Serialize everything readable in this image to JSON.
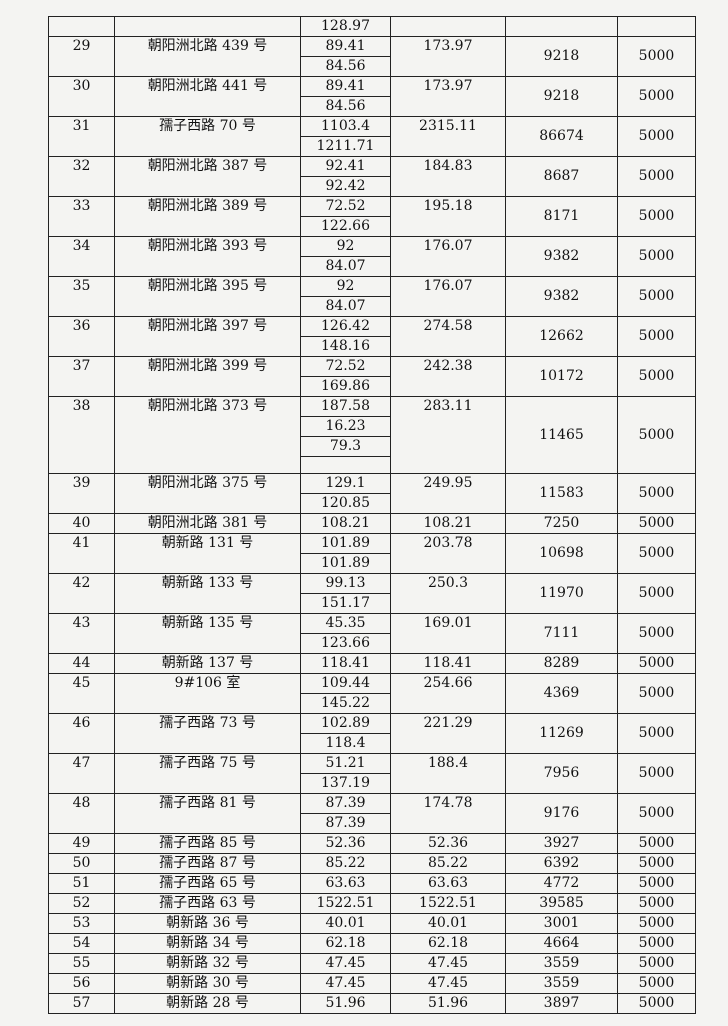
{
  "table": {
    "top_row": {
      "areas": [
        "128.97"
      ]
    },
    "rows": [
      {
        "no": "29",
        "address": "朝阳洲北路 439 号",
        "areas": [
          "89.41",
          "84.56"
        ],
        "total": "173.97",
        "amount": "9218",
        "fee": "5000"
      },
      {
        "no": "30",
        "address": "朝阳洲北路 441 号",
        "areas": [
          "89.41",
          "84.56"
        ],
        "total": "173.97",
        "amount": "9218",
        "fee": "5000"
      },
      {
        "no": "31",
        "address": "孺子西路 70 号",
        "areas": [
          "1103.4",
          "1211.71"
        ],
        "total": "2315.11",
        "amount": "86674",
        "fee": "5000"
      },
      {
        "no": "32",
        "address": "朝阳洲北路 387 号",
        "areas": [
          "92.41",
          "92.42"
        ],
        "total": "184.83",
        "amount": "8687",
        "fee": "5000"
      },
      {
        "no": "33",
        "address": "朝阳洲北路 389 号",
        "areas": [
          "72.52",
          "122.66"
        ],
        "total": "195.18",
        "amount": "8171",
        "fee": "5000"
      },
      {
        "no": "34",
        "address": "朝阳洲北路 393 号",
        "areas": [
          "92",
          "84.07"
        ],
        "total": "176.07",
        "amount": "9382",
        "fee": "5000"
      },
      {
        "no": "35",
        "address": "朝阳洲北路 395 号",
        "areas": [
          "92",
          "84.07"
        ],
        "total": "176.07",
        "amount": "9382",
        "fee": "5000"
      },
      {
        "no": "36",
        "address": "朝阳洲北路 397 号",
        "areas": [
          "126.42",
          "148.16"
        ],
        "total": "274.58",
        "amount": "12662",
        "fee": "5000"
      },
      {
        "no": "37",
        "address": "朝阳洲北路 399 号",
        "areas": [
          "72.52",
          "169.86"
        ],
        "total": "242.38",
        "amount": "10172",
        "fee": "5000"
      },
      {
        "no": "38",
        "address": "朝阳洲北路 373 号",
        "areas": [
          "187.58",
          "16.23",
          "79.3"
        ],
        "total": "283.11",
        "amount": "11465",
        "fee": "5000"
      },
      {
        "no": "39",
        "address": "朝阳洲北路 375 号",
        "areas": [
          "129.1",
          "120.85"
        ],
        "total": "249.95",
        "amount": "11583",
        "fee": "5000"
      },
      {
        "no": "40",
        "address": "朝阳洲北路 381 号",
        "areas": [
          "108.21"
        ],
        "total": "108.21",
        "amount": "7250",
        "fee": "5000"
      },
      {
        "no": "41",
        "address": "朝新路 131 号",
        "areas": [
          "101.89",
          "101.89"
        ],
        "total": "203.78",
        "amount": "10698",
        "fee": "5000"
      },
      {
        "no": "42",
        "address": "朝新路 133 号",
        "areas": [
          "99.13",
          "151.17"
        ],
        "total": "250.3",
        "amount": "11970",
        "fee": "5000"
      },
      {
        "no": "43",
        "address": "朝新路 135 号",
        "areas": [
          "45.35",
          "123.66"
        ],
        "total": "169.01",
        "amount": "7111",
        "fee": "5000"
      },
      {
        "no": "44",
        "address": "朝新路 137 号",
        "areas": [
          "118.41"
        ],
        "total": "118.41",
        "amount": "8289",
        "fee": "5000"
      },
      {
        "no": "45",
        "address": "9#106 室",
        "areas": [
          "109.44",
          "145.22"
        ],
        "total": "254.66",
        "amount": "4369",
        "fee": "5000"
      },
      {
        "no": "46",
        "address": "孺子西路 73 号",
        "areas": [
          "102.89",
          "118.4"
        ],
        "total": "221.29",
        "amount": "11269",
        "fee": "5000"
      },
      {
        "no": "47",
        "address": "孺子西路 75 号",
        "areas": [
          "51.21",
          "137.19"
        ],
        "total": "188.4",
        "amount": "7956",
        "fee": "5000"
      },
      {
        "no": "48",
        "address": "孺子西路 81 号",
        "areas": [
          "87.39",
          "87.39"
        ],
        "total": "174.78",
        "amount": "9176",
        "fee": "5000"
      },
      {
        "no": "49",
        "address": "孺子西路 85 号",
        "areas": [
          "52.36"
        ],
        "total": "52.36",
        "amount": "3927",
        "fee": "5000"
      },
      {
        "no": "50",
        "address": "孺子西路 87 号",
        "areas": [
          "85.22"
        ],
        "total": "85.22",
        "amount": "6392",
        "fee": "5000"
      },
      {
        "no": "51",
        "address": "孺子西路 65 号",
        "areas": [
          "63.63"
        ],
        "total": "63.63",
        "amount": "4772",
        "fee": "5000"
      },
      {
        "no": "52",
        "address": "孺子西路 63 号",
        "areas": [
          "1522.51"
        ],
        "total": "1522.51",
        "amount": "39585",
        "fee": "5000"
      },
      {
        "no": "53",
        "address": "朝新路 36 号",
        "areas": [
          "40.01"
        ],
        "total": "40.01",
        "amount": "3001",
        "fee": "5000"
      },
      {
        "no": "54",
        "address": "朝新路 34 号",
        "areas": [
          "62.18"
        ],
        "total": "62.18",
        "amount": "4664",
        "fee": "5000"
      },
      {
        "no": "55",
        "address": "朝新路 32 号",
        "areas": [
          "47.45"
        ],
        "total": "47.45",
        "amount": "3559",
        "fee": "5000"
      },
      {
        "no": "56",
        "address": "朝新路 30 号",
        "areas": [
          "47.45"
        ],
        "total": "47.45",
        "amount": "3559",
        "fee": "5000"
      },
      {
        "no": "57",
        "address": "朝新路 28 号",
        "areas": [
          "51.96"
        ],
        "total": "51.96",
        "amount": "3897",
        "fee": "5000"
      }
    ]
  }
}
